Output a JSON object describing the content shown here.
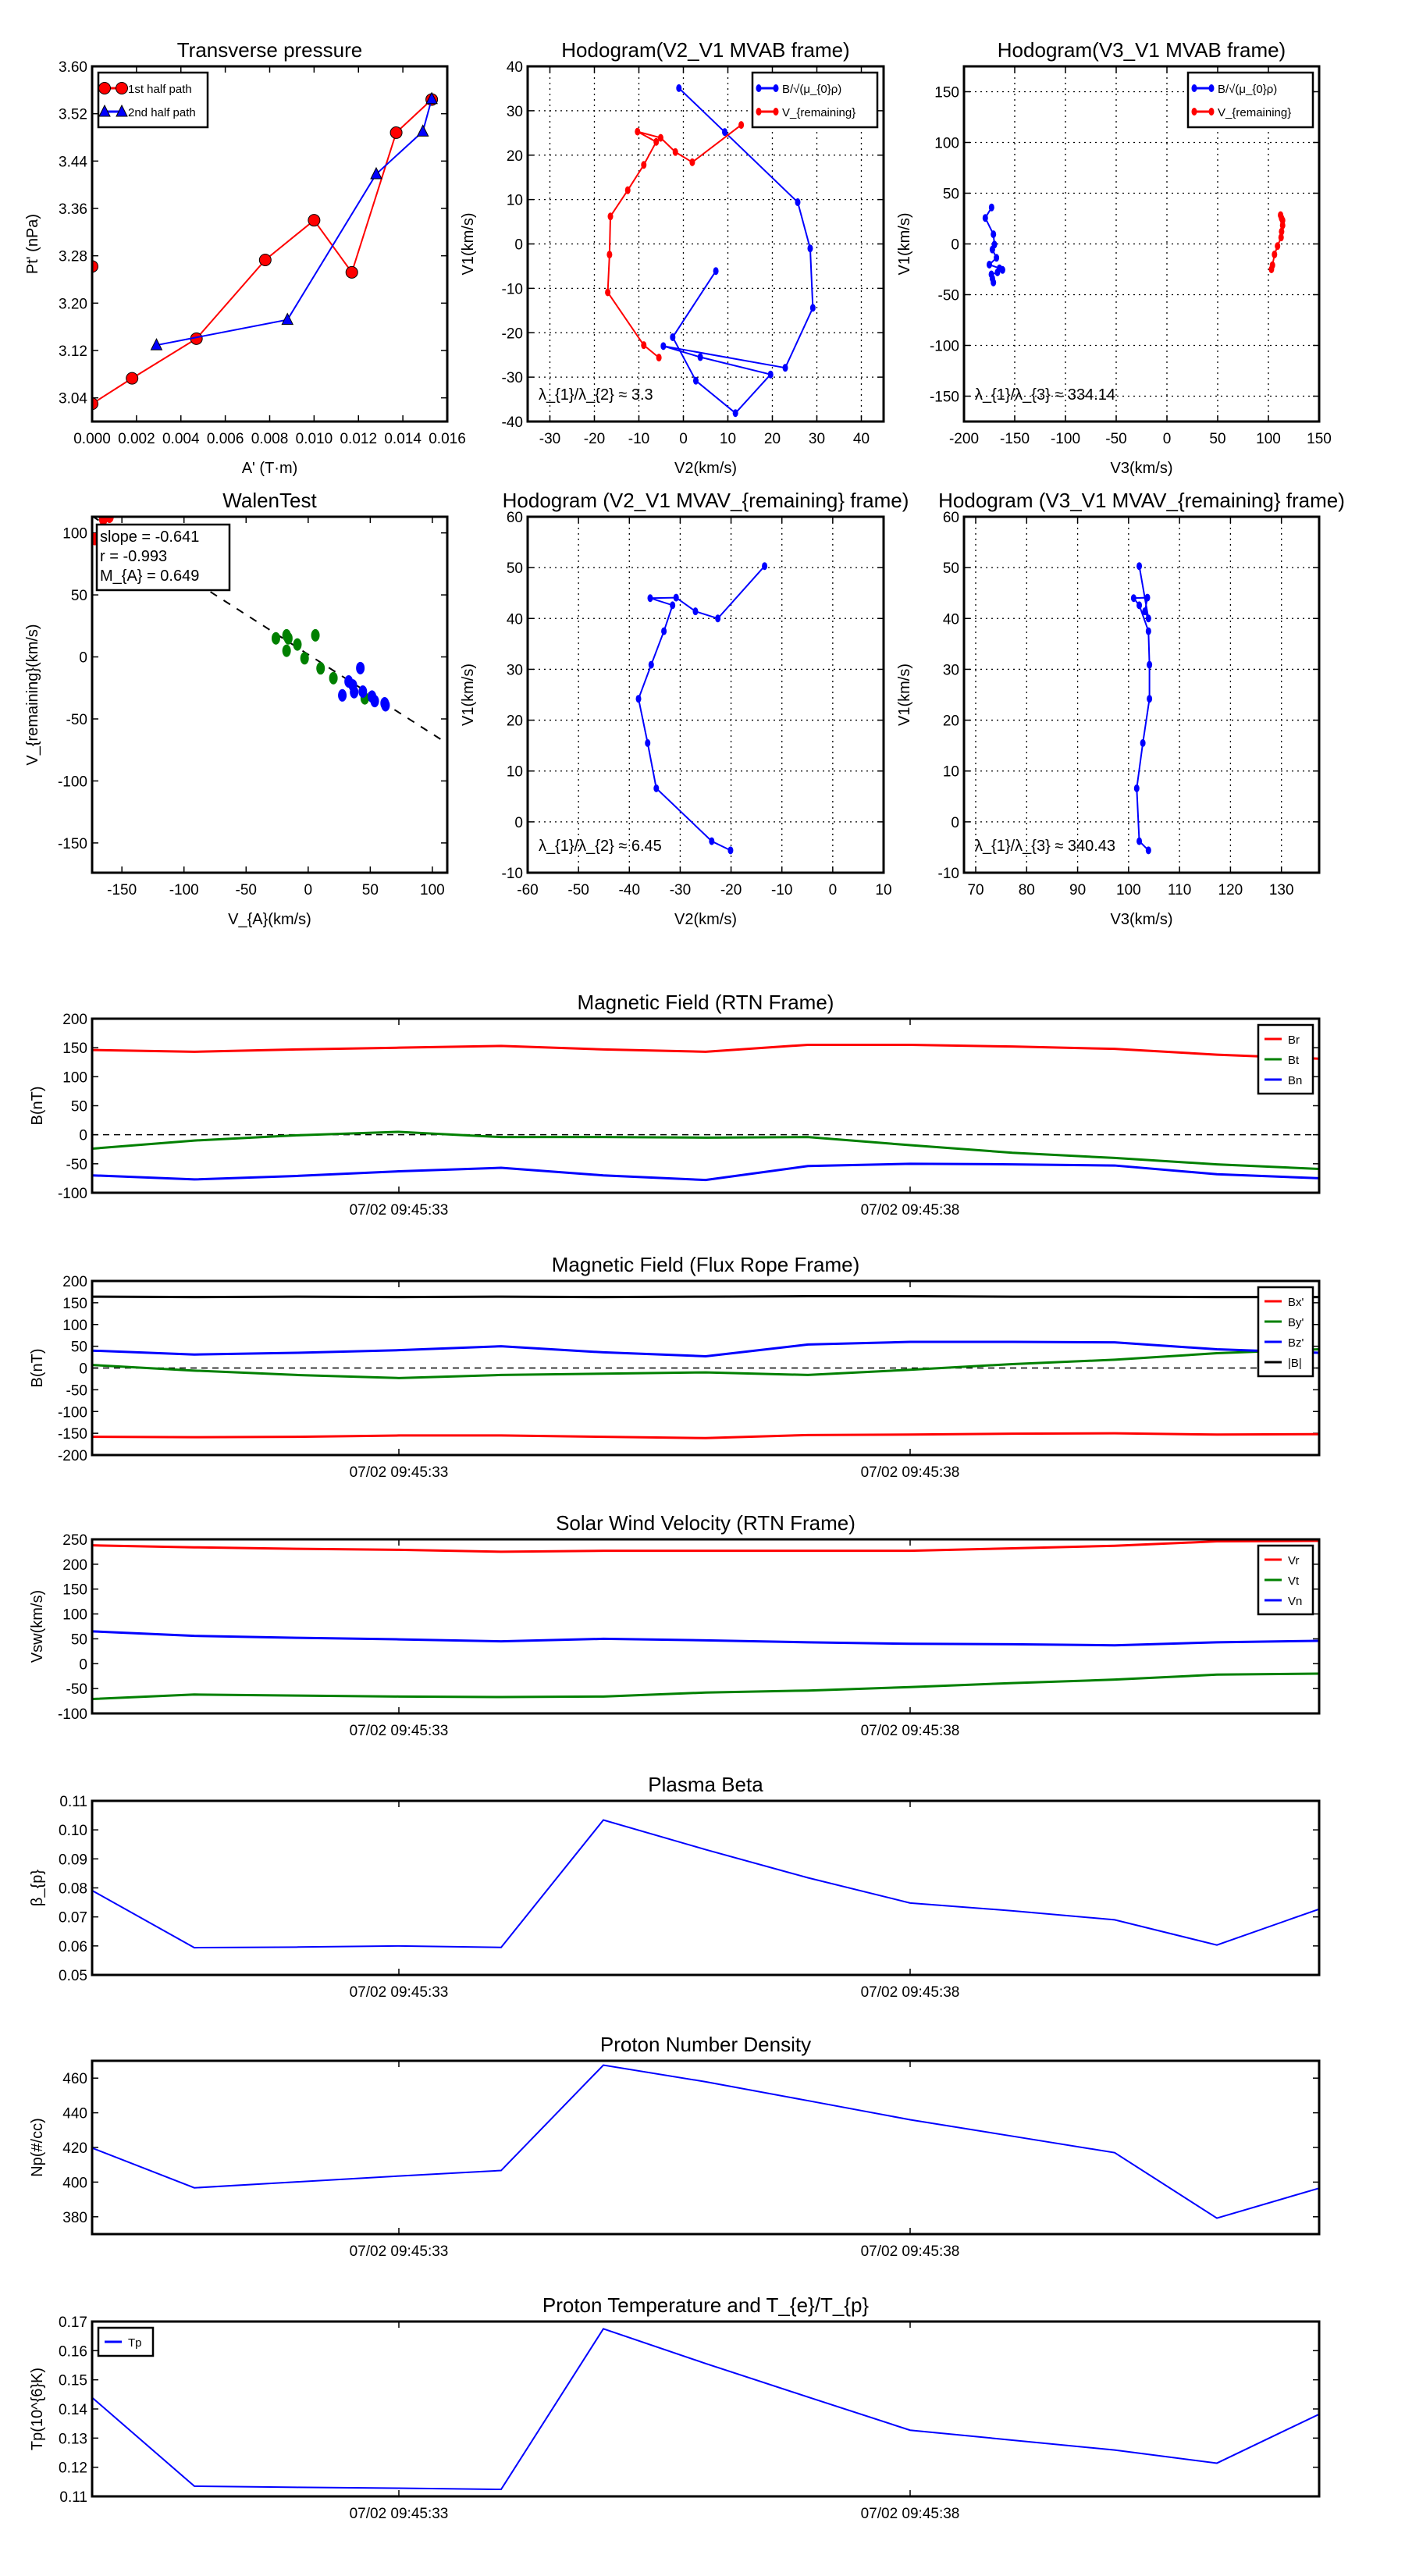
{
  "chart_data": [
    {
      "id": "transverse-pressure",
      "type": "line",
      "title": "Transverse pressure",
      "xlabel": "A' (T·m)",
      "ylabel": "Pt' (nPa)",
      "xlim": [
        0,
        0.016
      ],
      "ylim": [
        3.0,
        3.6
      ],
      "grid": false,
      "xticks": [
        "0.000",
        "0.002",
        "0.004",
        "0.006",
        "0.008",
        "0.010",
        "0.012",
        "0.014",
        "0.016"
      ],
      "yticks": [
        "3.04",
        "3.12",
        "3.20",
        "3.28",
        "3.36",
        "3.44",
        "3.52",
        "3.60"
      ],
      "legend_loc": "upper-left",
      "series": [
        {
          "id": "first-half-path",
          "label": "1st half path",
          "color": "#ff0000",
          "marker": "o",
          "line": true,
          "x": [
            0.0,
            0.0,
            0.0018,
            0.0047,
            0.0078,
            0.01,
            0.0117,
            0.0137,
            0.0153
          ],
          "y": [
            3.262,
            3.03,
            3.073,
            3.14,
            3.273,
            3.34,
            3.252,
            3.488,
            3.544
          ]
        },
        {
          "id": "second-half-path",
          "label": "2nd half path",
          "color": "#0000ff",
          "marker": "^",
          "line": true,
          "x": [
            0.0153,
            0.0149,
            0.0128,
            0.0088,
            0.0029
          ],
          "y": [
            3.545,
            3.49,
            3.418,
            3.172,
            3.129
          ]
        }
      ]
    },
    {
      "id": "hodogram-v2-v1-mvab",
      "type": "line",
      "title": "Hodogram(V2_V1 MVAB frame)",
      "xlabel": "V2(km/s)",
      "ylabel": "V1(km/s)",
      "xlim": [
        -35,
        45
      ],
      "ylim": [
        -40,
        40
      ],
      "grid": true,
      "xticks": [
        "-30",
        "-20",
        "-10",
        "0",
        "10",
        "20",
        "30",
        "40"
      ],
      "yticks": [
        "-40",
        "-30",
        "-20",
        "-10",
        "0",
        "10",
        "20",
        "30",
        "40"
      ],
      "legend_loc": "upper-right",
      "annotation": "λ_{1}/λ_{2} ≈ 3.3",
      "series": [
        {
          "id": "b-alfven",
          "label": "B/√(μ_{0}ρ)",
          "color": "#0000ff",
          "marker": ".",
          "line": true,
          "x": [
            -1.0,
            9.3,
            25.7,
            28.5,
            29.1,
            22.9,
            -4.5,
            3.8,
            19.6,
            11.7,
            2.8,
            -2.4,
            7.3
          ],
          "y": [
            35.1,
            25.2,
            9.4,
            -1.0,
            -14.4,
            -27.9,
            -23.0,
            -25.5,
            -29.4,
            -38.1,
            -30.8,
            -21.0,
            -6.1
          ]
        },
        {
          "id": "v-remaining",
          "label": "V_{remaining}",
          "color": "#ff0000",
          "marker": ".",
          "line": true,
          "x": [
            13.0,
            2.0,
            -1.8,
            -5.1,
            -10.3,
            -6.1,
            -8.9,
            -12.5,
            -16.4,
            -16.6,
            -17.0,
            -8.9,
            -5.5
          ],
          "y": [
            26.8,
            18.4,
            20.7,
            23.9,
            25.3,
            23.0,
            17.8,
            12.1,
            6.2,
            -2.4,
            -10.9,
            -22.8,
            -25.6
          ]
        }
      ]
    },
    {
      "id": "hodogram-v3-v1-mvab",
      "type": "line",
      "title": "Hodogram(V3_V1 MVAB frame)",
      "xlabel": "V3(km/s)",
      "ylabel": "V1(km/s)",
      "xlim": [
        -200,
        150
      ],
      "ylim": [
        -175,
        175
      ],
      "grid": true,
      "xticks": [
        "-200",
        "-150",
        "-100",
        "-50",
        "0",
        "50",
        "100",
        "150"
      ],
      "yticks": [
        "-150",
        "-100",
        "-50",
        "0",
        "50",
        "100",
        "150"
      ],
      "legend_loc": "upper-right",
      "annotation": "λ_{1}/λ_{3} ≈ 334.14",
      "series": [
        {
          "id": "b-alfven",
          "label": "B/√(μ_{0}ρ)",
          "color": "#0000ff",
          "marker": ".",
          "line": true,
          "x": [
            -172.8,
            -179,
            -171,
            -170,
            -172,
            -168,
            -175,
            -165,
            -162,
            -167,
            -173,
            -171,
            -172
          ],
          "y": [
            36,
            25.6,
            9.5,
            -0.6,
            -5.5,
            -13.7,
            -20.4,
            -24,
            -25.6,
            -28,
            -30,
            -38,
            -34
          ]
        },
        {
          "id": "v-remaining",
          "label": "V_{remaining}",
          "color": "#ff0000",
          "marker": ".",
          "line": true,
          "x": [
            112,
            113,
            114,
            114,
            113,
            112.5,
            109,
            106,
            104,
            103
          ],
          "y": [
            28.4,
            25.3,
            23.2,
            18.3,
            12.2,
            6.4,
            -2.1,
            -10.4,
            -21,
            -25
          ]
        }
      ]
    },
    {
      "id": "walen-test",
      "type": "scatter",
      "title": "WalenTest",
      "xlabel": "V_{A}(km/s)",
      "ylabel": "V_{remaining}(km/s)",
      "xlim": [
        -174,
        112
      ],
      "ylim": [
        -174,
        113
      ],
      "grid": false,
      "xticks": [
        "-150",
        "-100",
        "-50",
        "0",
        "50",
        "100"
      ],
      "yticks": [
        "-150",
        "-100",
        "-50",
        "0",
        "50",
        "100"
      ],
      "fit": {
        "slope": -0.641,
        "intercept": 2.0
      },
      "textbox": [
        "slope = -0.641",
        "r = -0.993",
        "M_{A} = 0.649"
      ],
      "series": [
        {
          "id": "walen-red",
          "color": "#ff0000",
          "marker": "O",
          "line": false,
          "x": [
            -165,
            -172,
            -160
          ],
          "y": [
            111,
            95,
            113
          ]
        },
        {
          "id": "walen-green",
          "color": "#008000",
          "marker": "O",
          "line": false,
          "x": [
            -26,
            -17.4,
            -16,
            -17.4,
            -8.7,
            -2.9,
            5.8,
            10,
            20.3,
            45.6
          ],
          "y": [
            15,
            17.4,
            15,
            5,
            10,
            -1.1,
            17.4,
            -9.2,
            -17.1,
            -33.4
          ]
        },
        {
          "id": "walen-blue",
          "color": "#0000ff",
          "marker": "O",
          "line": false,
          "x": [
            42,
            32.6,
            36,
            27.5,
            37,
            44,
            51.4,
            53.6,
            62.3,
            61.6
          ],
          "y": [
            -9,
            -19.8,
            -23,
            -31,
            -28.4,
            -28,
            -32,
            -35.6,
            -39,
            -37.4
          ]
        }
      ]
    },
    {
      "id": "hodogram-v2-v1-mvav",
      "type": "line",
      "title": "Hodogram (V2_V1 MVAV_{remaining} frame)",
      "xlabel": "V2(km/s)",
      "ylabel": "V1(km/s)",
      "xlim": [
        -60,
        10
      ],
      "ylim": [
        -10,
        60
      ],
      "grid": true,
      "xticks": [
        "-60",
        "-50",
        "-40",
        "-30",
        "-20",
        "-10",
        "0",
        "10"
      ],
      "yticks": [
        "-10",
        "0",
        "10",
        "20",
        "30",
        "40",
        "50",
        "60"
      ],
      "annotation": "λ_{1}/λ_{2} ≈ 6.45",
      "series": [
        {
          "id": "b-alfven",
          "color": "#0000ff",
          "marker": ".",
          "line": true,
          "x": [
            -13.4,
            -22.6,
            -27.0,
            -30.8,
            -35.9,
            -31.5,
            -33.2,
            -35.7,
            -38.2,
            -36.4,
            -34.7,
            -23.8,
            -20.1
          ],
          "y": [
            50.3,
            40.0,
            41.4,
            44.1,
            44.0,
            42.6,
            37.5,
            30.9,
            24.2,
            15.5,
            6.6,
            -3.8,
            -5.6
          ]
        }
      ]
    },
    {
      "id": "hodogram-v3-v1-mvav",
      "type": "line",
      "title": "Hodogram (V3_V1 MVAV_{remaining} frame)",
      "xlabel": "V3(km/s)",
      "ylabel": "V1(km/s)",
      "xlim": [
        67.7,
        137.4
      ],
      "ylim": [
        -10,
        60
      ],
      "grid": true,
      "xticks": [
        "70",
        "80",
        "90",
        "100",
        "110",
        "120",
        "130"
      ],
      "yticks": [
        "-10",
        "0",
        "10",
        "20",
        "30",
        "40",
        "50",
        "60"
      ],
      "annotation": "λ_{1}/λ_{3} ≈ 340.43",
      "series": [
        {
          "id": "b-alfven",
          "color": "#0000ff",
          "marker": ".",
          "line": true,
          "x": [
            102.1,
            103.9,
            103.2,
            103.7,
            101.0,
            102.1,
            103.9,
            104.1,
            104.1,
            102.8,
            101.6,
            102.1,
            103.9
          ],
          "y": [
            50.3,
            40.0,
            41.4,
            44.1,
            44.0,
            42.6,
            37.5,
            30.9,
            24.2,
            15.5,
            6.6,
            -3.8,
            -5.6
          ]
        }
      ]
    },
    {
      "id": "magnetic-field-rtn",
      "type": "line",
      "title": "Magnetic Field (RTN Frame)",
      "ylabel": "B(nT)",
      "xlim": [
        0,
        12
      ],
      "ylim": [
        -100,
        200
      ],
      "zero_line": true,
      "xticks": [
        {
          "pos": 3,
          "label": "07/02 09:45:33"
        },
        {
          "pos": 8,
          "label": "07/02 09:45:38"
        }
      ],
      "yticks": [
        "-100",
        "-50",
        "0",
        "50",
        "100",
        "150",
        "200"
      ],
      "legend_loc": "upper-right",
      "series": [
        {
          "id": "br",
          "label": "Br",
          "color": "#ff0000",
          "line": true,
          "y": [
            146,
            143,
            147,
            150,
            153,
            147,
            143,
            155,
            155,
            152,
            148,
            138,
            131
          ]
        },
        {
          "id": "bt",
          "label": "Bt",
          "color": "#008000",
          "line": true,
          "y": [
            -24,
            -10,
            -1,
            5,
            -4,
            -4,
            -5,
            -4,
            -18,
            -31,
            -40,
            -51,
            -59
          ]
        },
        {
          "id": "bn",
          "label": "Bn",
          "color": "#0000ff",
          "line": true,
          "y": [
            -70,
            -77,
            -71,
            -63,
            -57,
            -70,
            -78,
            -54,
            -50,
            -51,
            -53,
            -68,
            -75
          ]
        }
      ]
    },
    {
      "id": "magnetic-field-flux-rope",
      "type": "line",
      "title": "Magnetic Field (Flux Rope Frame)",
      "ylabel": "B(nT)",
      "xlim": [
        0,
        12
      ],
      "ylim": [
        -200,
        200
      ],
      "zero_line": true,
      "xticks": [
        {
          "pos": 3,
          "label": "07/02 09:45:33"
        },
        {
          "pos": 8,
          "label": "07/02 09:45:38"
        }
      ],
      "yticks": [
        "-200",
        "-150",
        "-100",
        "-50",
        "0",
        "50",
        "100",
        "150",
        "200"
      ],
      "legend_loc": "upper-right",
      "series": [
        {
          "id": "bx-prime",
          "label": "Bx'",
          "color": "#ff0000",
          "line": true,
          "y": [
            -158,
            -159,
            -158,
            -155,
            -155,
            -158,
            -161,
            -154,
            -153,
            -151,
            -150,
            -153,
            -152
          ]
        },
        {
          "id": "by-prime",
          "label": "By'",
          "color": "#008000",
          "line": true,
          "y": [
            7,
            -6,
            -16,
            -23,
            -16,
            -13,
            -10,
            -16,
            -4,
            9,
            19,
            34,
            43
          ]
        },
        {
          "id": "bz-prime",
          "label": "Bz'",
          "color": "#0000ff",
          "line": true,
          "y": [
            40,
            31,
            35,
            41,
            50,
            36,
            27,
            54,
            60,
            60,
            59,
            43,
            35
          ]
        },
        {
          "id": "b-magnitude",
          "label": "|B|",
          "color": "#000000",
          "line": true,
          "y": [
            164,
            163,
            164,
            163,
            164,
            163,
            164,
            165,
            165,
            164,
            164,
            163,
            163
          ]
        }
      ]
    },
    {
      "id": "solar-wind-velocity",
      "type": "line",
      "title": "Solar Wind Velocity (RTN Frame)",
      "ylabel": "Vsw(km/s)",
      "xlim": [
        0,
        12
      ],
      "ylim": [
        -100,
        250
      ],
      "xticks": [
        {
          "pos": 3,
          "label": "07/02 09:45:33"
        },
        {
          "pos": 8,
          "label": "07/02 09:45:38"
        }
      ],
      "yticks": [
        "-100",
        "-50",
        "0",
        "50",
        "100",
        "150",
        "200",
        "250"
      ],
      "legend_loc": "upper-right",
      "series": [
        {
          "id": "vr",
          "label": "Vr",
          "color": "#ff0000",
          "line": true,
          "y": [
            238,
            234,
            231,
            229,
            225,
            227,
            227,
            227,
            227,
            232,
            237,
            246,
            247
          ]
        },
        {
          "id": "vt",
          "label": "Vt",
          "color": "#008000",
          "line": true,
          "y": [
            -71,
            -62,
            -64,
            -66,
            -67,
            -66,
            -58,
            -54,
            -47,
            -39,
            -32,
            -22,
            -20
          ]
        },
        {
          "id": "vn",
          "label": "Vn",
          "color": "#0000ff",
          "line": true,
          "y": [
            65,
            56,
            52,
            49,
            45,
            50,
            47,
            43,
            40,
            39,
            37,
            43,
            46
          ]
        }
      ]
    },
    {
      "id": "plasma-beta",
      "type": "line",
      "title": "Plasma Beta",
      "ylabel": "β_{p}",
      "xlim": [
        0,
        12
      ],
      "ylim": [
        0.05,
        0.11
      ],
      "xticks": [
        {
          "pos": 3,
          "label": "07/02 09:45:33"
        },
        {
          "pos": 8,
          "label": "07/02 09:45:38"
        }
      ],
      "yticks": [
        "0.05",
        "0.06",
        "0.07",
        "0.08",
        "0.09",
        "0.10",
        "0.11"
      ],
      "series": [
        {
          "id": "beta",
          "color": "#0000ff",
          "line": true,
          "lw": 2,
          "y": [
            0.0791,
            0.0594,
            0.0596,
            0.06,
            0.0595,
            0.1034,
            0.0932,
            0.0835,
            0.0748,
            0.0721,
            0.069,
            0.0603,
            0.0727
          ]
        }
      ]
    },
    {
      "id": "proton-number-density",
      "type": "line",
      "title": "Proton Number Density",
      "ylabel": "Np(#/cc)",
      "xlim": [
        0,
        12
      ],
      "ylim": [
        370,
        470
      ],
      "xticks": [
        {
          "pos": 3,
          "label": "07/02 09:45:33"
        },
        {
          "pos": 8,
          "label": "07/02 09:45:38"
        }
      ],
      "yticks": [
        "380",
        "400",
        "420",
        "440",
        "460"
      ],
      "series": [
        {
          "id": "np",
          "color": "#0000ff",
          "line": true,
          "lw": 2,
          "y": [
            419.7,
            396.7,
            400.1,
            403.5,
            406.7,
            467.5,
            457.9,
            447.0,
            436.0,
            426.5,
            417.0,
            379.2,
            396.5
          ]
        }
      ]
    },
    {
      "id": "proton-temperature",
      "type": "line",
      "title": "Proton Temperature and T_{e}/T_{p}",
      "ylabel": "Tp(10^{6}K)",
      "xlim": [
        0,
        12
      ],
      "ylim": [
        0.11,
        0.17
      ],
      "xticks": [
        {
          "pos": 3,
          "label": "07/02 09:45:33"
        },
        {
          "pos": 8,
          "label": "07/02 09:45:38"
        }
      ],
      "yticks": [
        "0.11",
        "0.12",
        "0.13",
        "0.14",
        "0.15",
        "0.16",
        "0.17"
      ],
      "legend_loc": "upper-left",
      "series": [
        {
          "id": "tp",
          "label": "Tp",
          "color": "#0000ff",
          "line": true,
          "lw": 2,
          "y": [
            0.1439,
            0.1135,
            0.1131,
            0.1128,
            0.1124,
            0.1675,
            0.1556,
            0.1441,
            0.1327,
            0.1293,
            0.1259,
            0.1214,
            0.1382
          ]
        }
      ]
    }
  ]
}
